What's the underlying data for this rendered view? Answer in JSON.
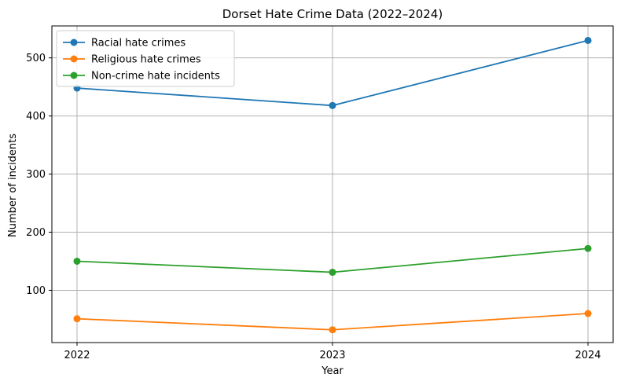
{
  "chart_data": {
    "type": "line",
    "title": "Dorset Hate Crime Data (2022–2024)",
    "xlabel": "Year",
    "ylabel": "Number of incidents",
    "x": [
      2022,
      2023,
      2024
    ],
    "x_tick_labels": [
      "2022",
      "2023",
      "2024"
    ],
    "y_ticks": [
      100,
      200,
      300,
      400,
      500
    ],
    "ylim": [
      10,
      555
    ],
    "grid": true,
    "legend_position": "top-left",
    "series": [
      {
        "name": "Racial hate crimes",
        "color": "#1f77b4",
        "values": [
          448,
          418,
          530
        ]
      },
      {
        "name": "Religious hate crimes",
        "color": "#ff7f0e",
        "values": [
          51,
          32,
          60
        ]
      },
      {
        "name": "Non-crime hate incidents",
        "color": "#2ca02c",
        "values": [
          150,
          131,
          172
        ]
      }
    ]
  }
}
